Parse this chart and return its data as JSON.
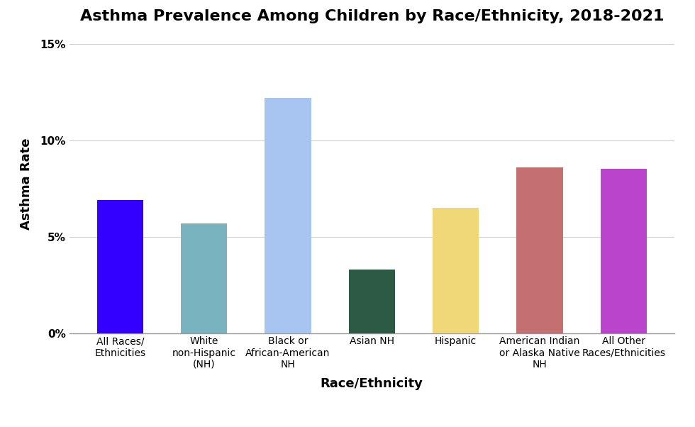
{
  "title": "Asthma Prevalence Among Children by Race/Ethnicity, 2018-2021",
  "xlabel": "Race/Ethnicity",
  "ylabel": "Asthma Rate",
  "categories": [
    "All Races/\nEthnicities",
    "White\nnon-Hispanic\n(NH)",
    "Black or\nAfrican-American\nNH",
    "Asian NH",
    "Hispanic",
    "American Indian\nor Alaska Native\nNH",
    "All Other\nRaces/Ethnicities"
  ],
  "values": [
    0.069,
    0.057,
    0.122,
    0.033,
    0.065,
    0.086,
    0.085
  ],
  "colors": [
    "#3300ff",
    "#7ab3c0",
    "#a8c4f0",
    "#2d5a45",
    "#f0d878",
    "#c47070",
    "#bb44cc"
  ],
  "ylim": [
    0,
    0.155
  ],
  "yticks": [
    0,
    0.05,
    0.1,
    0.15
  ],
  "ytick_labels": [
    "0%",
    "5%",
    "10%",
    "15%"
  ],
  "background_color": "#ffffff",
  "title_fontsize": 16,
  "axis_label_fontsize": 13,
  "tick_fontsize": 11,
  "xtick_fontsize": 10,
  "grid_color": "#d0d0d0",
  "bar_width": 0.55
}
